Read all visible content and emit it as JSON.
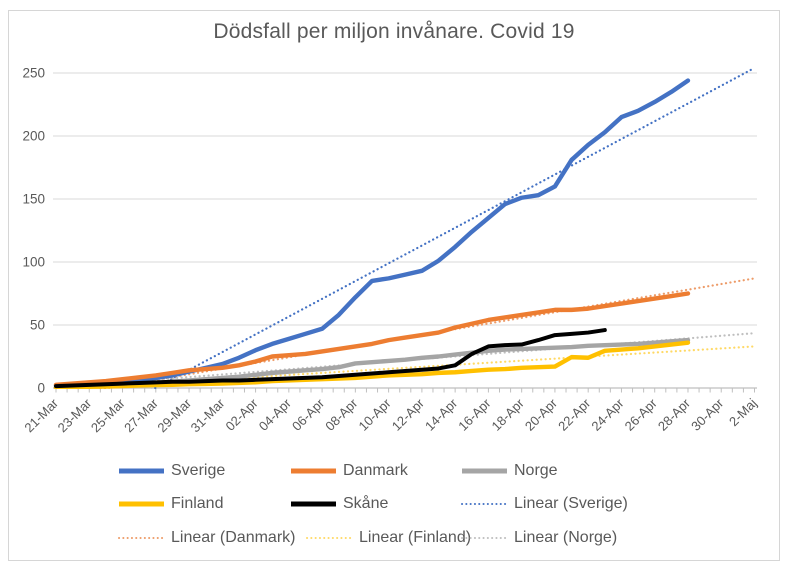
{
  "chart_data": {
    "type": "line",
    "title": "Dödsfall per miljon invånare. Covid 19",
    "xlabel": "",
    "ylabel": "",
    "ylim": [
      0,
      250
    ],
    "y_ticks": [
      0,
      50,
      100,
      150,
      200,
      250
    ],
    "grid": "horizontal",
    "x_days_total": 43,
    "label_every_days": 2,
    "minor_tick_divisions": 3,
    "x_labels": [
      "21-Mar",
      "23-Mar",
      "25-Mar",
      "27-Mar",
      "29-Mar",
      "31-Mar",
      "02-Apr",
      "04-Apr",
      "06-Apr",
      "08-Apr",
      "10-Apr",
      "12-Apr",
      "14-Apr",
      "16-Apr",
      "18-Apr",
      "20-Apr",
      "22-Apr",
      "24-Apr",
      "26-Apr",
      "28-Apr",
      "30-Apr",
      "2-Maj"
    ],
    "series": [
      {
        "name": "Sverige",
        "color": "#4472C4",
        "style": "solid",
        "start_day": 0,
        "values": [
          2,
          2.5,
          3,
          4,
          5,
          6.5,
          8,
          10,
          13,
          16,
          19,
          24,
          30,
          35,
          39,
          43,
          47,
          58,
          72,
          85,
          87,
          90,
          93,
          101,
          112,
          124,
          135,
          146,
          151,
          153,
          160,
          181,
          193,
          203,
          215,
          220,
          227,
          235,
          244
        ]
      },
      {
        "name": "Danmark",
        "color": "#ED7D31",
        "style": "solid",
        "start_day": 0,
        "values": [
          2.5,
          3.5,
          4.5,
          5.5,
          7,
          8.5,
          10,
          12,
          14,
          15,
          16,
          18,
          21,
          25,
          26,
          27,
          29,
          31,
          33,
          35,
          38,
          40,
          42,
          44,
          48,
          51,
          54,
          56,
          58,
          60,
          62,
          62,
          63,
          65,
          67,
          69,
          71,
          73,
          75
        ]
      },
      {
        "name": "Norge",
        "color": "#A5A5A5",
        "style": "solid",
        "start_day": 0,
        "values": [
          1,
          1.5,
          2,
          2.5,
          3,
          3.5,
          4,
          5,
          6,
          7,
          8,
          9,
          10.5,
          12,
          13,
          14,
          15,
          16.5,
          19.5,
          20.5,
          21.5,
          22.5,
          24,
          25,
          26.5,
          28,
          29.5,
          30.5,
          31,
          31.5,
          32,
          32.5,
          33.5,
          34,
          34.5,
          35,
          36,
          37,
          38
        ]
      },
      {
        "name": "Finland",
        "color": "#FFC000",
        "style": "solid",
        "start_day": 0,
        "values": [
          0.5,
          0.7,
          1,
          1.2,
          1.5,
          2,
          2.3,
          2.5,
          3,
          3.2,
          3.5,
          4,
          4.5,
          5.5,
          6,
          6.5,
          7,
          7.5,
          8,
          9,
          10,
          10.5,
          11,
          12,
          12.5,
          13.5,
          14.5,
          15,
          16,
          16.5,
          17,
          24.5,
          24,
          29.5,
          30.5,
          31.5,
          33,
          34.5,
          36
        ]
      },
      {
        "name": "Skåne",
        "color": "#000000",
        "style": "solid",
        "start_day": 0,
        "values": [
          1.5,
          2,
          2.5,
          3,
          3.5,
          4,
          4.5,
          5,
          5,
          5.5,
          6,
          6,
          6.5,
          7,
          7.5,
          8,
          8.5,
          9.5,
          10.5,
          11.5,
          12.5,
          13.5,
          14.5,
          15.5,
          18,
          27,
          33,
          34,
          34.5,
          38,
          42,
          43,
          44,
          46
        ]
      }
    ],
    "trendlines": [
      {
        "name": "Linear (Sverige)",
        "color": "#4472C4",
        "start_value": -42,
        "end_value": 254
      },
      {
        "name": "Linear (Danmark)",
        "color": "#ED9B68",
        "start_value": -7,
        "end_value": 87
      },
      {
        "name": "Linear (Finland)",
        "color": "#FFD965",
        "start_value": -1,
        "end_value": 33
      },
      {
        "name": "Linear (Norge)",
        "color": "#BFBFBF",
        "start_value": 0.5,
        "end_value": 43.5
      }
    ],
    "legend": {
      "position": "bottom",
      "items": [
        {
          "label": "Sverige",
          "color": "#4472C4",
          "dash": "solid"
        },
        {
          "label": "Danmark",
          "color": "#ED7D31",
          "dash": "solid"
        },
        {
          "label": "Norge",
          "color": "#A5A5A5",
          "dash": "solid"
        },
        {
          "label": "Finland",
          "color": "#FFC000",
          "dash": "solid"
        },
        {
          "label": "Skåne",
          "color": "#000000",
          "dash": "solid"
        },
        {
          "label": "Linear (Sverige)",
          "color": "#4472C4",
          "dash": "dotted"
        },
        {
          "label": "Linear (Danmark)",
          "color": "#ED9B68",
          "dash": "dotted"
        },
        {
          "label": "Linear (Finland)",
          "color": "#FFD965",
          "dash": "dotted"
        },
        {
          "label": "Linear (Norge)",
          "color": "#BFBFBF",
          "dash": "dotted"
        }
      ]
    },
    "colors": {
      "grid": "#D9D9D9",
      "axis": "#BFBFBF",
      "text": "#595959",
      "frame": "#D6D6D6",
      "background": "#FFFFFF"
    }
  }
}
